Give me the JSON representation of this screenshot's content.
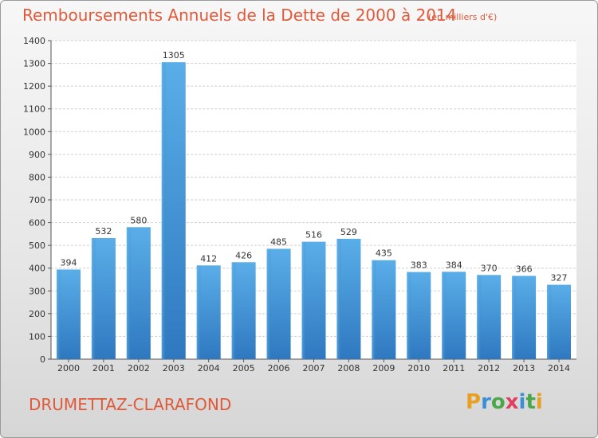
{
  "header": {
    "title": "Remboursements Annuels de la Dette de 2000 à 2014",
    "unit": "(en milliers d'€)"
  },
  "footer": {
    "town": "DRUMETTAZ-CLARAFOND",
    "logo": [
      "Pro",
      "x",
      "iti"
    ]
  },
  "colors": {
    "bar_top": "#5aaee8",
    "bar_bottom": "#2f78c0",
    "title": "#e05a3a"
  },
  "chart_data": {
    "type": "bar",
    "title": "Remboursements Annuels de la Dette de 2000 à 2014",
    "subtitle": "(en milliers d'€)",
    "categories": [
      "2000",
      "2001",
      "2002",
      "2003",
      "2004",
      "2005",
      "2006",
      "2007",
      "2008",
      "2009",
      "2010",
      "2011",
      "2012",
      "2013",
      "2014"
    ],
    "values": [
      394,
      532,
      580,
      1305,
      412,
      426,
      485,
      516,
      529,
      435,
      383,
      384,
      370,
      366,
      327
    ],
    "ylim": [
      0,
      1400
    ],
    "yticks": [
      0,
      100,
      200,
      300,
      400,
      500,
      600,
      700,
      800,
      900,
      1000,
      1100,
      1200,
      1300,
      1400
    ],
    "grid": true,
    "data_labels": true
  }
}
